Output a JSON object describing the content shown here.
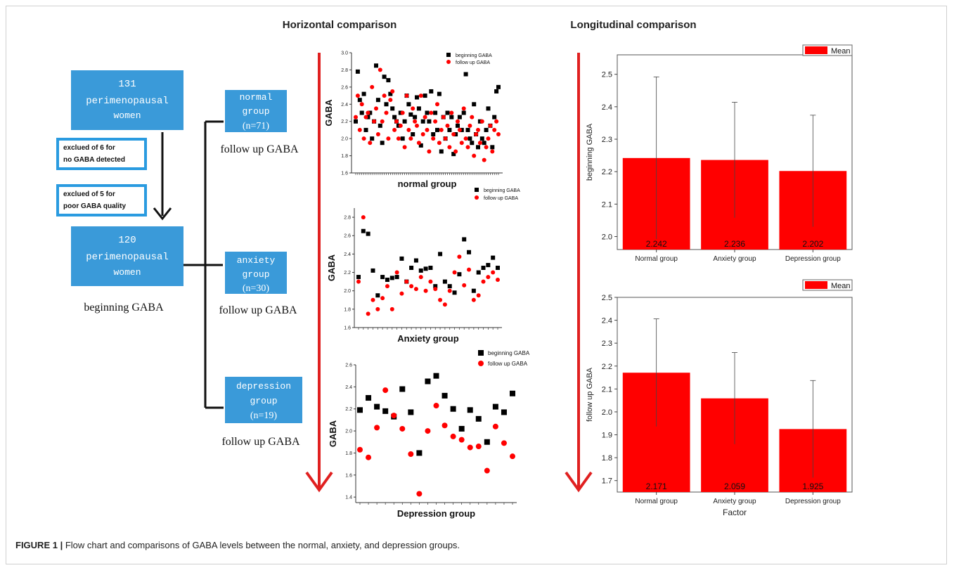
{
  "headings": {
    "horizontal": "Horizontal comparison",
    "longitudinal": "Longitudinal comparison"
  },
  "flow": {
    "start_box": [
      "131",
      "perimenopausal",
      "women"
    ],
    "exclusion_1": [
      "exclued of 6 for",
      "no GABA detected"
    ],
    "exclusion_2": [
      "exclued of 5 for",
      "poor GABA quality"
    ],
    "cohort_box": [
      "120",
      "perimenopausal",
      "women"
    ],
    "cohort_label": "beginning GABA",
    "groups": [
      {
        "lines": [
          "normal",
          "group",
          "(n=71)"
        ],
        "label": "follow up GABA"
      },
      {
        "lines": [
          "anxiety",
          "group",
          "(n=30)"
        ],
        "label": "follow up GABA"
      },
      {
        "lines": [
          "depression",
          "group",
          "(n=19)"
        ],
        "label": "follow up GABA"
      }
    ],
    "colors": {
      "box_fill": "#3a9ad9",
      "exclusion_border": "#2a9be0",
      "arrow_red": "#e02020",
      "bracket": "#111111"
    }
  },
  "caption": {
    "prefix": "FIGURE 1 |",
    "text": " Flow chart and comparisons of GABA levels between the normal, anxiety, and depression groups."
  },
  "chart_data": [
    {
      "type": "scatter",
      "xlabel": "normal group",
      "ylabel": "GABA",
      "ylim": [
        1.6,
        3.0
      ],
      "yticks": [
        "1.6",
        "1.8",
        "2.0",
        "2.2",
        "2.4",
        "2.6",
        "2.8",
        "3.0"
      ],
      "legend_position": "top-right",
      "series": [
        {
          "name": "beginning GABA",
          "marker": "square",
          "color": "#000000",
          "values": [
            2.2,
            2.78,
            2.45,
            2.3,
            2.52,
            2.1,
            2.25,
            2.3,
            2.0,
            2.2,
            2.85,
            2.45,
            2.15,
            1.95,
            2.72,
            2.4,
            2.68,
            2.52,
            2.35,
            2.25,
            2.2,
            2.15,
            2.3,
            2.0,
            2.2,
            2.5,
            2.4,
            2.28,
            2.05,
            2.25,
            2.48,
            2.35,
            1.92,
            2.2,
            2.5,
            2.3,
            2.2,
            2.55,
            2.05,
            2.3,
            2.1,
            2.52,
            1.85,
            2.25,
            2.0,
            2.3,
            2.1,
            2.25,
            1.82,
            2.05,
            2.15,
            2.25,
            2.1,
            2.3,
            2.75,
            2.1,
            2.0,
            1.95,
            2.4,
            2.05,
            1.9,
            2.2,
            2.0,
            1.95,
            2.1,
            2.35,
            2.15,
            1.9,
            2.25,
            2.55,
            2.6
          ]
        },
        {
          "name": "follow up GABA",
          "marker": "circle",
          "color": "#ff0000",
          "values": [
            2.25,
            2.5,
            2.1,
            2.4,
            2.0,
            2.25,
            2.3,
            1.95,
            2.6,
            2.2,
            2.35,
            2.05,
            2.8,
            2.2,
            2.5,
            2.3,
            2.0,
            2.45,
            2.55,
            2.1,
            2.2,
            2.0,
            2.15,
            2.3,
            1.9,
            2.5,
            2.1,
            2.0,
            2.35,
            2.2,
            2.15,
            1.95,
            2.5,
            2.05,
            2.25,
            2.1,
            1.85,
            2.3,
            2.0,
            2.2,
            2.4,
            1.95,
            2.1,
            2.25,
            2.0,
            2.15,
            1.9,
            2.3,
            2.05,
            1.85,
            2.2,
            2.1,
            1.95,
            2.35,
            2.0,
            1.9,
            2.15,
            2.25,
            1.8,
            2.05,
            2.1,
            1.95,
            2.2,
            1.75,
            1.9,
            2.0,
            2.15,
            1.85,
            2.1,
            2.2,
            2.05
          ]
        }
      ]
    },
    {
      "type": "scatter",
      "xlabel": "Anxiety group",
      "ylabel": "GABA",
      "ylim": [
        1.6,
        2.9
      ],
      "yticks": [
        "1.6",
        "1.8",
        "2.0",
        "2.2",
        "2.4",
        "2.6",
        "2.8"
      ],
      "legend_position": "top-right",
      "series": [
        {
          "name": "beginning GABA",
          "marker": "square",
          "color": "#000000",
          "values": [
            2.15,
            2.65,
            2.62,
            2.22,
            1.95,
            2.15,
            2.12,
            2.14,
            2.15,
            2.35,
            2.1,
            2.25,
            2.33,
            2.22,
            2.24,
            2.25,
            2.05,
            2.4,
            2.1,
            2.05,
            1.98,
            2.18,
            2.56,
            2.42,
            2.0,
            2.2,
            2.25,
            2.28,
            2.36,
            2.25
          ]
        },
        {
          "name": "follow up GABA",
          "marker": "circle",
          "color": "#ff0000",
          "values": [
            2.1,
            2.8,
            1.75,
            1.9,
            1.8,
            1.92,
            2.05,
            1.8,
            2.2,
            1.97,
            2.1,
            2.05,
            2.02,
            2.15,
            2.0,
            2.1,
            2.02,
            1.9,
            1.85,
            2.0,
            2.2,
            2.37,
            2.06,
            2.23,
            1.9,
            1.95,
            2.1,
            2.15,
            2.2,
            2.12
          ]
        }
      ]
    },
    {
      "type": "scatter",
      "xlabel": "Depression group",
      "ylabel": "GABA",
      "ylim": [
        1.35,
        2.6
      ],
      "yticks": [
        "1.4",
        "1.6",
        "1.8",
        "2.0",
        "2.2",
        "2.4",
        "2.6"
      ],
      "legend_position": "top-right",
      "series": [
        {
          "name": "beginning GABA",
          "marker": "square",
          "color": "#000000",
          "values": [
            2.19,
            2.3,
            2.22,
            2.18,
            2.13,
            2.38,
            2.17,
            1.8,
            2.45,
            2.5,
            2.32,
            2.2,
            2.02,
            2.19,
            2.11,
            1.9,
            2.22,
            2.17,
            2.34
          ]
        },
        {
          "name": "follow up GABA",
          "marker": "circle",
          "color": "#ff0000",
          "values": [
            1.83,
            1.76,
            2.03,
            2.37,
            2.14,
            2.02,
            1.79,
            1.43,
            2.0,
            2.23,
            2.05,
            1.95,
            1.92,
            1.85,
            1.86,
            1.64,
            2.04,
            1.89,
            1.77
          ]
        }
      ]
    },
    {
      "type": "bar",
      "categories": [
        "Normal group",
        "Anxiety group",
        "Depression group"
      ],
      "values": [
        2.242,
        2.236,
        2.202
      ],
      "value_labels": [
        "2.242",
        "2.236",
        "2.202"
      ],
      "errors": [
        0.25,
        0.178,
        0.172
      ],
      "ylabel": "beginning GABA",
      "xlabel": "",
      "ylim": [
        1.96,
        2.56
      ],
      "yticks": [
        "2.0",
        "2.1",
        "2.2",
        "2.3",
        "2.4",
        "2.5"
      ],
      "legend": "Mean",
      "legend_position": "top-right",
      "color": "#ff0000"
    },
    {
      "type": "bar",
      "categories": [
        "Normal group",
        "Anxiety group",
        "Depression group"
      ],
      "values": [
        2.171,
        2.059,
        1.925
      ],
      "value_labels": [
        "2.171",
        "2.059",
        "1.925"
      ],
      "errors": [
        0.235,
        0.2,
        0.212
      ],
      "ylabel": "follow up GABA",
      "xlabel": "Factor",
      "ylim": [
        1.65,
        2.5
      ],
      "yticks": [
        "1.7",
        "1.8",
        "1.9",
        "2.0",
        "2.1",
        "2.2",
        "2.3",
        "2.4",
        "2.5"
      ],
      "legend": "Mean",
      "legend_position": "top-right",
      "color": "#ff0000"
    }
  ]
}
